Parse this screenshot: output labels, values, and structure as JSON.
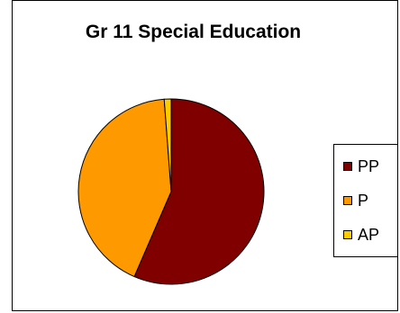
{
  "chart_data": {
    "type": "pie",
    "title": "Gr 11 Special Education",
    "series": [
      {
        "name": "PP",
        "value": 56.5,
        "color": "#800000"
      },
      {
        "name": "P",
        "value": 42.3,
        "color": "#FF9900"
      },
      {
        "name": "AP",
        "value": 1.2,
        "color": "#FFCC00"
      }
    ],
    "legend_position": "right"
  }
}
